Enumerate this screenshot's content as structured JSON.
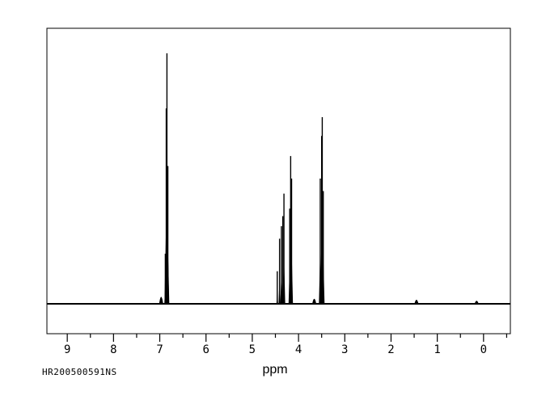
{
  "footer": {
    "id_label": "HR200500591NS"
  },
  "chart_data": {
    "type": "line",
    "subtype": "1H NMR spectrum",
    "title": "",
    "xlabel": "ppm",
    "ylabel": "",
    "x_ticks": [
      9,
      8,
      7,
      6,
      5,
      4,
      3,
      2,
      1,
      0
    ],
    "x_minor_ticks": [
      8.5,
      7.5,
      6.5,
      5.5,
      4.5,
      3.5,
      2.5,
      1.5,
      0.5,
      -0.5
    ],
    "x_range_ppm": [
      9.44,
      -0.58
    ],
    "x_axis_reversed": true,
    "grid": false,
    "legend": "none",
    "line_color": "#000000",
    "background_color": "#ffffff",
    "peaks": [
      {
        "ppm": 6.88,
        "rel_height": 0.2
      },
      {
        "ppm": 6.86,
        "rel_height": 0.78
      },
      {
        "ppm": 6.845,
        "rel_height": 1.0
      },
      {
        "ppm": 6.825,
        "rel_height": 0.55
      },
      {
        "ppm": 4.46,
        "rel_height": 0.13
      },
      {
        "ppm": 4.41,
        "rel_height": 0.26
      },
      {
        "ppm": 4.37,
        "rel_height": 0.31
      },
      {
        "ppm": 4.34,
        "rel_height": 0.35
      },
      {
        "ppm": 4.315,
        "rel_height": 0.44
      },
      {
        "ppm": 4.19,
        "rel_height": 0.38
      },
      {
        "ppm": 4.17,
        "rel_height": 0.59
      },
      {
        "ppm": 4.15,
        "rel_height": 0.5
      },
      {
        "ppm": 3.53,
        "rel_height": 0.5
      },
      {
        "ppm": 3.5,
        "rel_height": 0.67
      },
      {
        "ppm": 3.487,
        "rel_height": 0.745
      },
      {
        "ppm": 3.465,
        "rel_height": 0.45
      }
    ],
    "noise_bumps": [
      {
        "ppm": 6.97,
        "rel_height": 0.028
      },
      {
        "ppm": 3.66,
        "rel_height": 0.02
      },
      {
        "ppm": 1.45,
        "rel_height": 0.016
      },
      {
        "ppm": 0.15,
        "rel_height": 0.012
      }
    ]
  }
}
